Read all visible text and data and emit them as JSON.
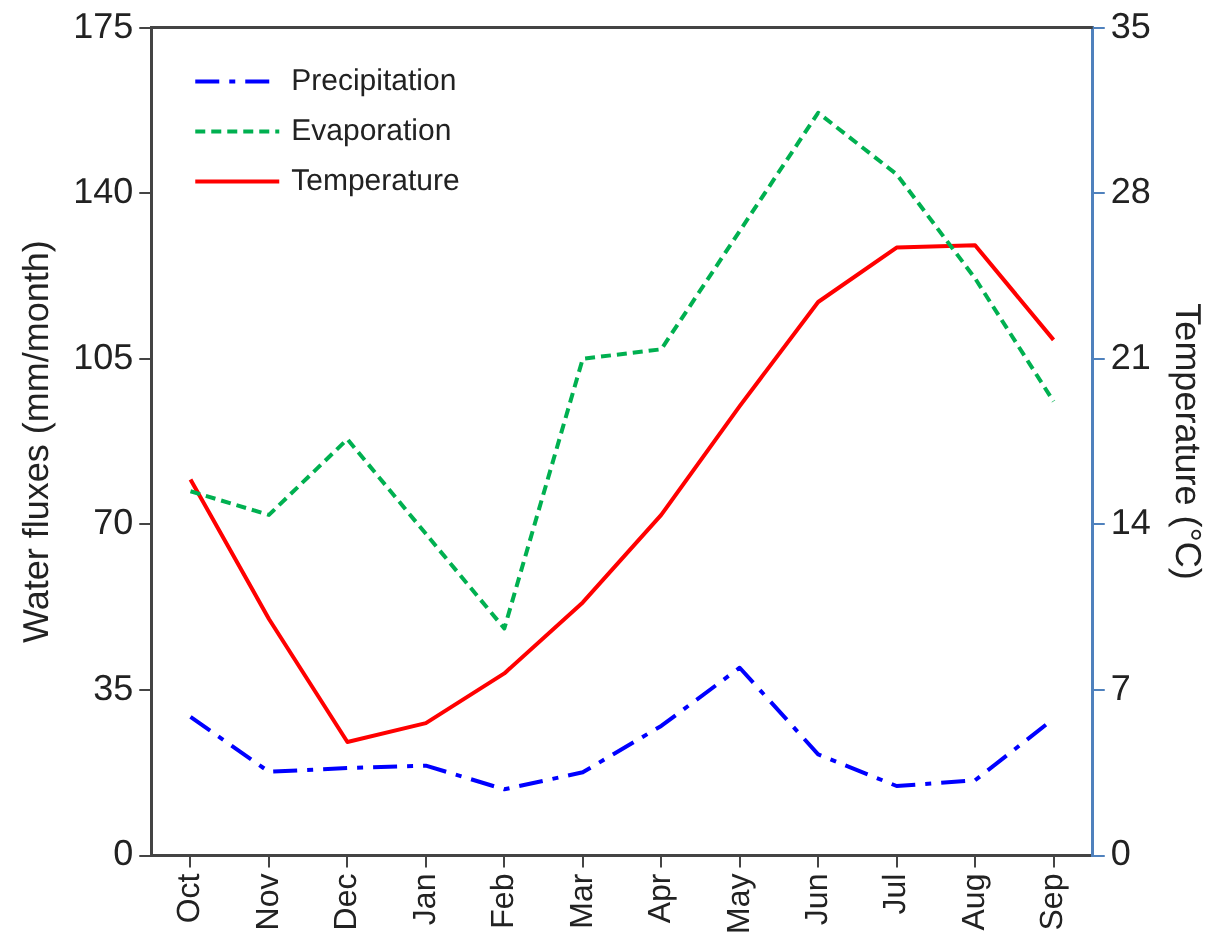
{
  "chart_data": {
    "type": "line",
    "ylabel": "Water fluxes (mm/month)",
    "y2label": "Temperature (°C)",
    "categories": [
      "Oct",
      "Nov",
      "Dec",
      "Jan",
      "Feb",
      "Mar",
      "Apr",
      "May",
      "Jun",
      "Jul",
      "Aug",
      "Sep"
    ],
    "series": [
      {
        "name": "Precipitation",
        "color": "#0000ff",
        "line_style": "dashdot",
        "values": [
          29.3,
          17.7,
          18.5,
          19,
          14,
          17.6,
          27.4,
          39.7,
          21.4,
          14.7,
          15.9,
          28.9
        ]
      },
      {
        "name": "Evaporation",
        "color": "#00b050",
        "line_style": "dashed",
        "values": [
          77,
          72,
          88,
          68,
          48,
          105,
          107,
          132,
          157,
          144,
          122,
          96
        ]
      },
      {
        "name": "Temperature",
        "color": "#ff0000",
        "line_style": "solid",
        "axis": "y2",
        "values": [
          15.9,
          10,
          4.8,
          5.6,
          7.7,
          10.7,
          14.4,
          19,
          23.4,
          25.7,
          25.8,
          21.8
        ]
      }
    ],
    "ylim": [
      0,
      175
    ],
    "yticks": [
      0,
      35,
      70,
      105,
      140,
      175
    ],
    "y2lim": [
      0,
      35
    ],
    "y2ticks": [
      0,
      7,
      14,
      21,
      28,
      35
    ],
    "legend": "top left",
    "marker": "none",
    "grid": false
  }
}
